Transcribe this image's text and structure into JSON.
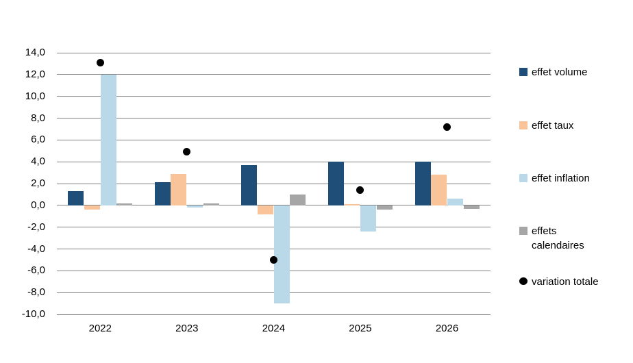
{
  "chart_data": {
    "type": "bar",
    "title": "",
    "xlabel": "",
    "ylabel": "",
    "categories": [
      "2022",
      "2023",
      "2024",
      "2025",
      "2026"
    ],
    "series": [
      {
        "name": "effet volume",
        "type": "bar",
        "color": "#1F4E79",
        "values": [
          1.3,
          2.1,
          3.7,
          4.0,
          4.0
        ]
      },
      {
        "name": "effet taux",
        "type": "bar",
        "color": "#F9C499",
        "values": [
          -0.4,
          2.9,
          -0.8,
          0.1,
          2.8
        ]
      },
      {
        "name": "effet inflation",
        "type": "bar",
        "color": "#B9D9E8",
        "values": [
          12.0,
          -0.2,
          -9.0,
          -2.4,
          0.6
        ]
      },
      {
        "name": "effets calendaires",
        "type": "bar",
        "color": "#A6A6A6",
        "values": [
          0.2,
          0.2,
          1.0,
          -0.4,
          -0.3
        ]
      },
      {
        "name": "variation totale",
        "type": "scatter",
        "color": "#000000",
        "values": [
          13.1,
          4.9,
          -5.0,
          1.4,
          7.2
        ]
      }
    ],
    "y_axis": {
      "min": -10,
      "max": 14,
      "step": 2,
      "tick_labels": [
        "14,0",
        "12,0",
        "10,0",
        "8,0",
        "6,0",
        "4,0",
        "2,0",
        "0,0",
        "-2,0",
        "-4,0",
        "-6,0",
        "-8,0",
        "-10,0"
      ]
    },
    "grid": true,
    "gridline_color": "#808080",
    "legend_position": "right"
  },
  "legend": {
    "items": [
      {
        "label": "effet volume",
        "marker": "square"
      },
      {
        "label": "effet taux",
        "marker": "square"
      },
      {
        "label": "effet inflation",
        "marker": "square"
      },
      {
        "label": "effets calendaires",
        "marker": "square"
      },
      {
        "label": "variation totale",
        "marker": "circle"
      }
    ]
  }
}
